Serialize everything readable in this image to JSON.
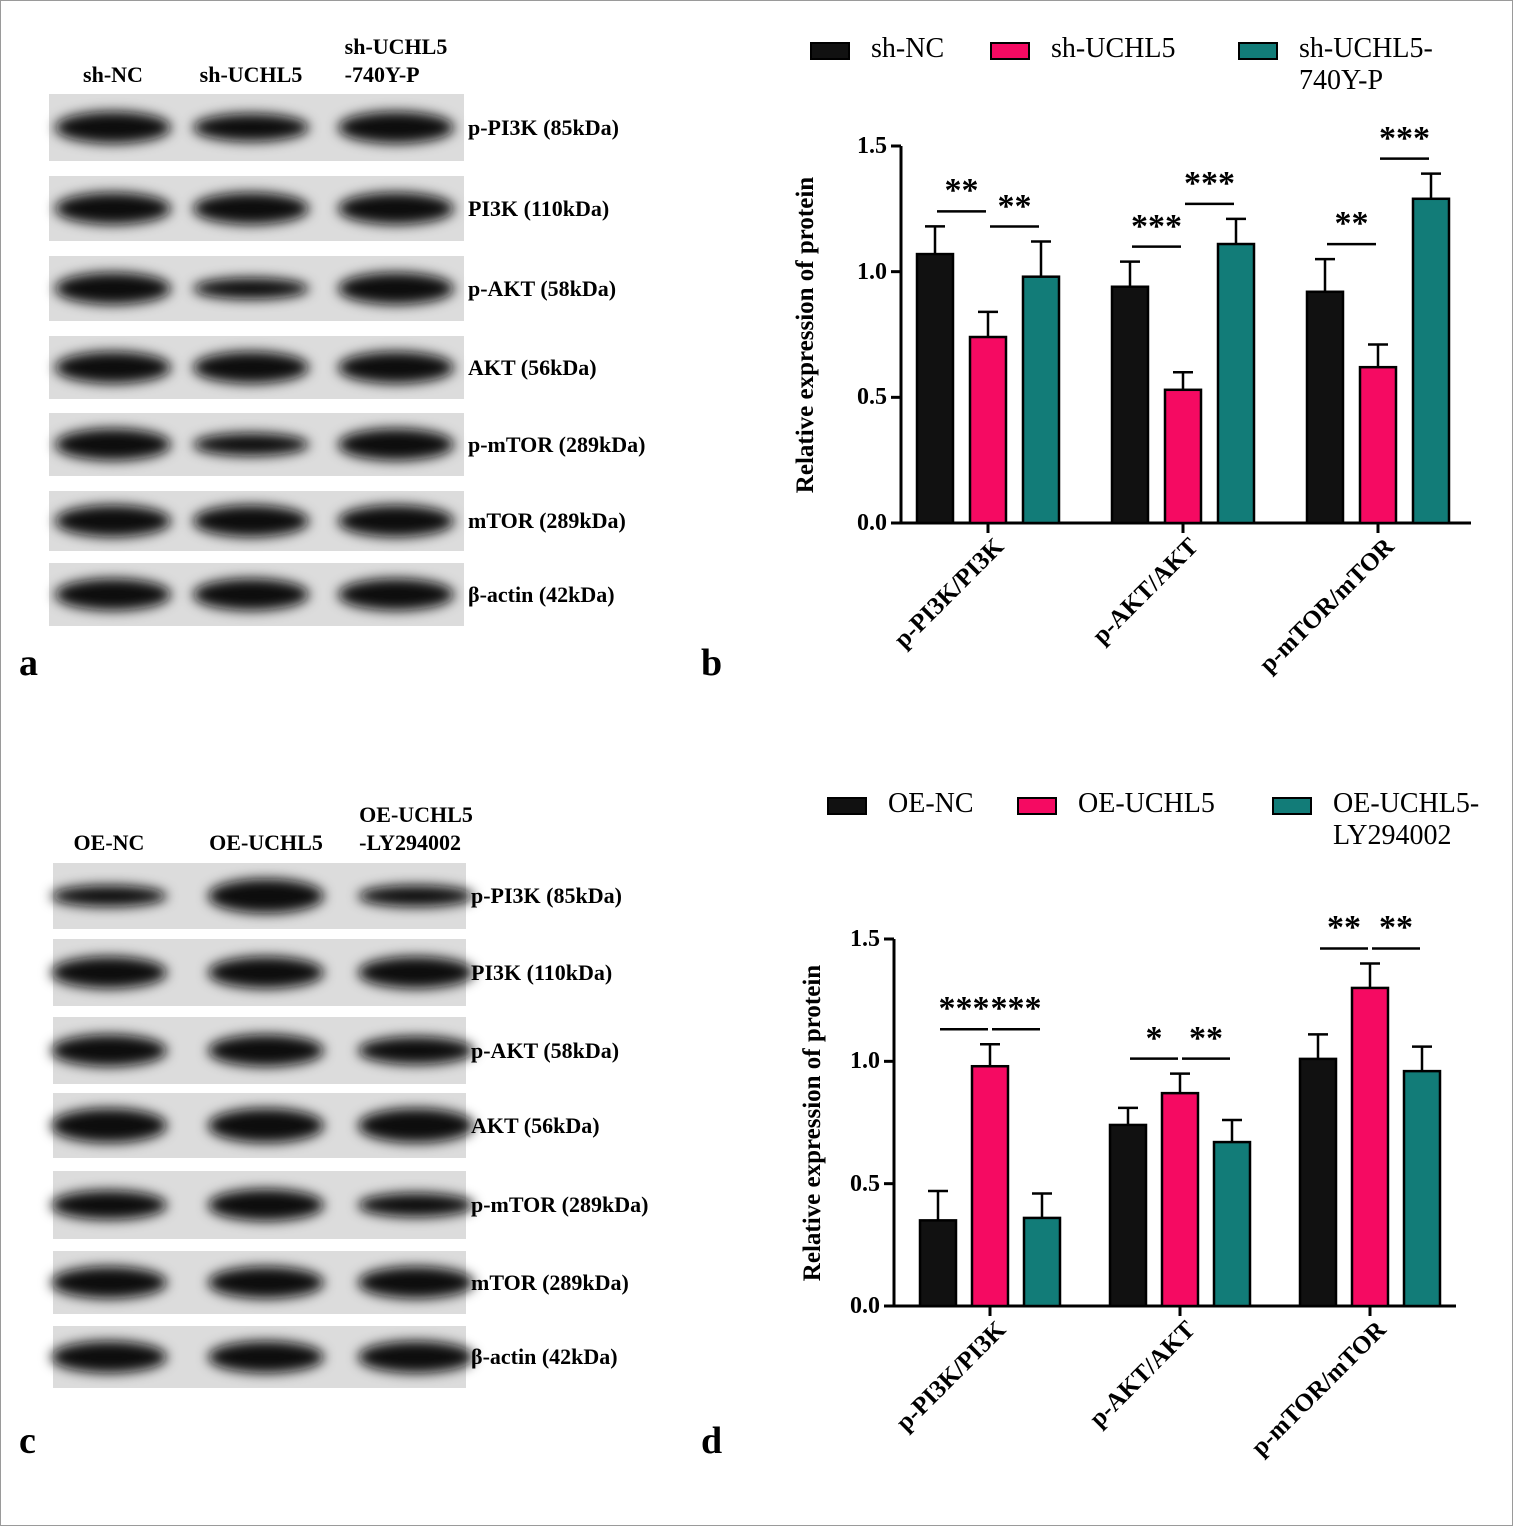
{
  "blots": [
    {
      "panel": "a",
      "lanes": [
        "sh-NC",
        "sh-UCHL5",
        "sh-UCHL5\n-740Y-P"
      ],
      "bands": [
        "p-PI3K (85kDa)",
        "PI3K (110kDa)",
        "p-AKT (58kDa)",
        "AKT (56kDa)",
        "p-mTOR (289kDa)",
        "mTOR (289kDa)",
        "β-actin (42kDa)"
      ]
    },
    {
      "panel": "c",
      "lanes": [
        "OE-NC",
        "OE-UCHL5",
        "OE-UCHL5\n-LY294002"
      ],
      "bands": [
        "p-PI3K (85kDa)",
        "PI3K (110kDa)",
        "p-AKT (58kDa)",
        "AKT (56kDa)",
        "p-mTOR (289kDa)",
        "mTOR (289kDa)",
        "β-actin (42kDa)"
      ]
    }
  ],
  "chart_data": [
    {
      "type": "bar",
      "panel": "b",
      "ylabel": "Relative expression of protein",
      "categories": [
        "p-PI3K/PI3K",
        "p-AKT/AKT",
        "p-mTOR/mTOR"
      ],
      "series": [
        {
          "name": "sh-NC",
          "color": "#111111",
          "values": [
            1.07,
            0.94,
            0.92
          ],
          "errors": [
            0.11,
            0.1,
            0.13
          ]
        },
        {
          "name": "sh-UCHL5",
          "color": "#f50a62",
          "values": [
            0.74,
            0.53,
            0.62
          ],
          "errors": [
            0.1,
            0.07,
            0.09
          ]
        },
        {
          "name": "sh-UCHL5-\n740Y-P",
          "color": "#127c78",
          "values": [
            0.98,
            1.11,
            1.29
          ],
          "errors": [
            0.14,
            0.1,
            0.1
          ]
        }
      ],
      "significance": [
        [
          "**",
          "**"
        ],
        [
          "***",
          "***"
        ],
        [
          "**",
          "***"
        ]
      ],
      "ylim": [
        0,
        1.5
      ],
      "yticks": [
        {
          "value": 0,
          "label": "0.0"
        },
        0.5,
        {
          "value": 1,
          "label": "1.0"
        },
        1.5
      ]
    },
    {
      "type": "bar",
      "panel": "d",
      "ylabel": "Relative expression of protein",
      "categories": [
        "p-PI3K/PI3K",
        "p-AKT/AKT",
        "p-mTOR/mTOR"
      ],
      "series": [
        {
          "name": "OE-NC",
          "color": "#111111",
          "values": [
            0.35,
            0.74,
            1.01
          ],
          "errors": [
            0.12,
            0.07,
            0.1
          ]
        },
        {
          "name": "OE-UCHL5",
          "color": "#f50a62",
          "values": [
            0.98,
            0.87,
            1.3
          ],
          "errors": [
            0.09,
            0.08,
            0.1
          ]
        },
        {
          "name": "OE-UCHL5-\nLY294002",
          "color": "#127c78",
          "values": [
            0.36,
            0.67,
            0.96
          ],
          "errors": [
            0.1,
            0.09,
            0.1
          ]
        }
      ],
      "significance": [
        [
          "***",
          "***"
        ],
        [
          "*",
          "**"
        ],
        [
          "**",
          "**"
        ]
      ],
      "ylim": [
        0,
        1.5
      ],
      "yticks": [
        {
          "value": 0,
          "label": "0.0"
        },
        0.5,
        {
          "value": 1,
          "label": "1.0"
        },
        1.5
      ]
    }
  ]
}
